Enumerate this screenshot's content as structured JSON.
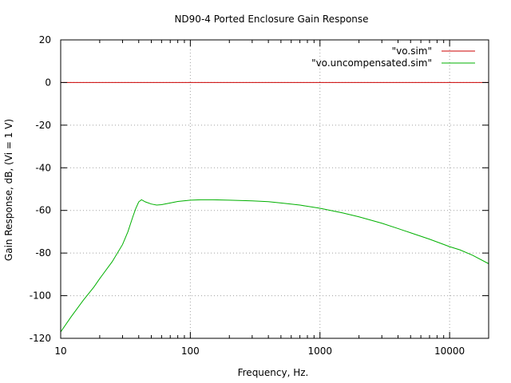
{
  "chart_data": {
    "type": "line",
    "title": "ND90-4 Ported Enclosure Gain Response",
    "xlabel": "Frequency, Hz.",
    "ylabel": "Gain Response, dB, (Vi = 1 V)",
    "xscale": "log",
    "xlim": [
      10,
      20000
    ],
    "ylim": [
      -120,
      20
    ],
    "xticks": [
      10,
      100,
      1000,
      10000
    ],
    "xtick_labels": [
      "10",
      "100",
      "1000",
      "10000"
    ],
    "yticks": [
      -120,
      -100,
      -80,
      -60,
      -40,
      -20,
      0,
      20
    ],
    "ytick_labels": [
      "-120",
      "-100",
      "-80",
      "-60",
      "-40",
      "-20",
      "0",
      "20"
    ],
    "grid": true,
    "legend_position": "top-right",
    "series": [
      {
        "name": "\"vo.sim\"",
        "color": "#cc0000",
        "x": [
          10,
          20000
        ],
        "y": [
          0,
          0
        ]
      },
      {
        "name": "\"vo.uncompensated.sim\"",
        "color": "#00b000",
        "x": [
          10,
          12,
          15,
          18,
          20,
          25,
          30,
          33,
          36,
          38,
          40,
          42,
          45,
          50,
          55,
          60,
          70,
          80,
          100,
          120,
          150,
          200,
          300,
          400,
          500,
          700,
          1000,
          1500,
          2000,
          3000,
          4000,
          5000,
          7000,
          10000,
          12000,
          15000,
          20000
        ],
        "y": [
          -117,
          -110,
          -102,
          -96,
          -92,
          -84,
          -76,
          -70,
          -63,
          -59,
          -56,
          -55,
          -56,
          -57,
          -57.5,
          -57.3,
          -56.5,
          -55.8,
          -55.2,
          -55,
          -55,
          -55.2,
          -55.5,
          -55.9,
          -56.5,
          -57.5,
          -59,
          -61.2,
          -63,
          -66,
          -68.5,
          -70.5,
          -73.5,
          -77,
          -78.5,
          -81,
          -85
        ]
      }
    ]
  }
}
